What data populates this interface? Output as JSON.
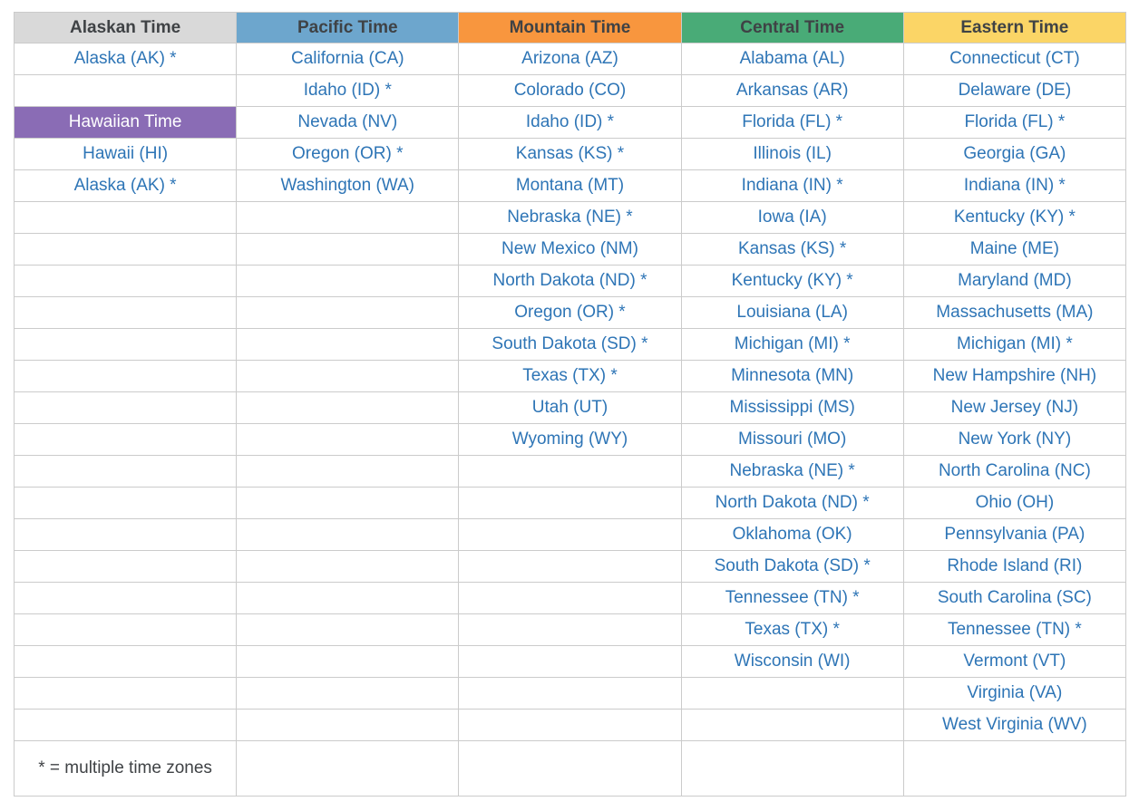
{
  "colors": {
    "header_bg": [
      "#D9D9D9",
      "#6DA6CD",
      "#F8963E",
      "#49AB77",
      "#FBD566"
    ],
    "hawaiian_header_bg": "#8A6CB5",
    "hawaiian_header_text": "#FFFFFF",
    "header_text": "#3F4245",
    "cell_text": "#2E75B6",
    "footnote_text": "#3F4245",
    "grid_line": "#CBCBCB",
    "page_bg": "#FFFFFF"
  },
  "chart_data": {
    "type": "table",
    "columns": [
      "Alaskan Time",
      "Pacific Time",
      "Mountain Time",
      "Central Time",
      "Eastern Time"
    ],
    "sub_header": {
      "label": "Hawaiian Time",
      "row": 2,
      "col": 0
    },
    "rows": [
      [
        "Alaska (AK) *",
        "California (CA)",
        "Arizona (AZ)",
        "Alabama (AL)",
        "Connecticut (CT)"
      ],
      [
        "",
        "Idaho (ID) *",
        "Colorado (CO)",
        "Arkansas (AR)",
        "Delaware (DE)"
      ],
      [
        "Hawaiian Time",
        "Nevada (NV)",
        "Idaho (ID) *",
        "Florida (FL) *",
        "Florida (FL) *"
      ],
      [
        "Hawaii (HI)",
        "Oregon (OR) *",
        "Kansas (KS) *",
        "Illinois (IL)",
        "Georgia (GA)"
      ],
      [
        "Alaska (AK) *",
        "Washington (WA)",
        "Montana (MT)",
        "Indiana (IN) *",
        "Indiana (IN) *"
      ],
      [
        "",
        "",
        "Nebraska (NE) *",
        "Iowa (IA)",
        "Kentucky (KY) *"
      ],
      [
        "",
        "",
        "New Mexico (NM)",
        "Kansas (KS) *",
        "Maine (ME)"
      ],
      [
        "",
        "",
        "North Dakota (ND) *",
        "Kentucky (KY) *",
        "Maryland (MD)"
      ],
      [
        "",
        "",
        "Oregon (OR) *",
        "Louisiana (LA)",
        "Massachusetts (MA)"
      ],
      [
        "",
        "",
        "South Dakota (SD) *",
        "Michigan (MI) *",
        "Michigan (MI) *"
      ],
      [
        "",
        "",
        "Texas (TX) *",
        "Minnesota (MN)",
        "New Hampshire (NH)"
      ],
      [
        "",
        "",
        "Utah (UT)",
        "Mississippi (MS)",
        "New Jersey (NJ)"
      ],
      [
        "",
        "",
        "Wyoming (WY)",
        "Missouri (MO)",
        "New York (NY)"
      ],
      [
        "",
        "",
        "",
        "Nebraska (NE) *",
        "North Carolina (NC)"
      ],
      [
        "",
        "",
        "",
        "North Dakota (ND) *",
        "Ohio (OH)"
      ],
      [
        "",
        "",
        "",
        "Oklahoma (OK)",
        "Pennsylvania (PA)"
      ],
      [
        "",
        "",
        "",
        "South Dakota (SD) *",
        "Rhode Island (RI)"
      ],
      [
        "",
        "",
        "",
        "Tennessee (TN) *",
        "South Carolina (SC)"
      ],
      [
        "",
        "",
        "",
        "Texas (TX) *",
        "Tennessee (TN) *"
      ],
      [
        "",
        "",
        "",
        "Wisconsin (WI)",
        "Vermont (VT)"
      ],
      [
        "",
        "",
        "",
        "",
        "Virginia (VA)"
      ],
      [
        "",
        "",
        "",
        "",
        "West Virginia (WV)"
      ]
    ],
    "footnote": "* = multiple time zones"
  }
}
